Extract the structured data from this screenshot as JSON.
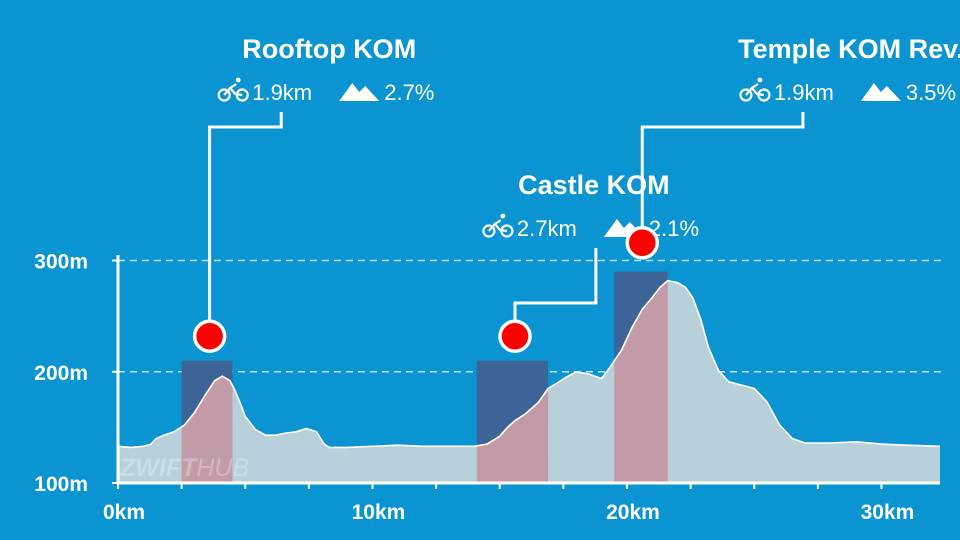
{
  "colors": {
    "background": "#0a94d1",
    "profile_fill": "#b8d0da",
    "profile_line": "#ffffff",
    "segment_bar": "#3d6496",
    "segment_climb": "#c39aa8",
    "marker": "#ff0000",
    "text": "#ffffff"
  },
  "icons": {
    "distance": "cyclist-icon",
    "gradient": "mountain-icon"
  },
  "watermark": {
    "left": "ZWIFT",
    "right": "HUB"
  },
  "chart_data": {
    "type": "area",
    "xlabel": "",
    "ylabel": "",
    "xlim": [
      0,
      32.3
    ],
    "ylim": [
      100,
      305
    ],
    "grid": true,
    "x_ticks": [
      0,
      10,
      20,
      30
    ],
    "x_tick_labels": [
      "0km",
      "10km",
      "20km",
      "30km"
    ],
    "y_ticks": [
      100,
      200,
      300
    ],
    "y_tick_labels": [
      "100m",
      "200m",
      "300m"
    ],
    "y_gridlines": [
      200,
      300
    ],
    "profile": {
      "x": [
        0,
        0.5,
        1,
        1.3,
        1.5,
        1.8,
        2.2,
        2.6,
        3.0,
        3.4,
        3.8,
        4.1,
        4.4,
        4.6,
        4.8,
        5.0,
        5.4,
        5.8,
        6.2,
        6.6,
        7.0,
        7.4,
        7.8,
        8.1,
        8.3,
        9,
        10,
        11,
        12,
        13,
        14,
        14.5,
        15.0,
        15.3,
        15.6,
        16.0,
        16.5,
        16.9,
        17.2,
        17.6,
        18.0,
        18.5,
        19.0,
        19.3,
        19.8,
        20.2,
        20.6,
        21.0,
        21.3,
        21.6,
        22.0,
        22.3,
        22.6,
        22.9,
        23.2,
        23.6,
        24.0,
        24.5,
        25.0,
        25.5,
        26.0,
        26.5,
        27.0,
        28,
        29,
        30,
        31,
        32.3
      ],
      "y": [
        133,
        132,
        133,
        135,
        140,
        143,
        146,
        152,
        163,
        178,
        192,
        196,
        192,
        183,
        172,
        160,
        148,
        143,
        143,
        145,
        146,
        149,
        146,
        135,
        132,
        132,
        133,
        134,
        133,
        133,
        133,
        135,
        142,
        150,
        156,
        162,
        172,
        185,
        189,
        195,
        200,
        198,
        194,
        203,
        220,
        240,
        256,
        267,
        276,
        282,
        280,
        276,
        266,
        247,
        222,
        201,
        191,
        188,
        185,
        173,
        152,
        140,
        136,
        136,
        137,
        135,
        134,
        133
      ]
    },
    "segments": [
      {
        "name": "Rooftop KOM",
        "distance": "1.9km",
        "gradient": "2.7%",
        "start_km": 2.5,
        "end_km": 4.5,
        "peak_elev": 210,
        "marker_km": 3.6,
        "marker_elev": 232,
        "label_center_km": 8.3,
        "label_level": 1
      },
      {
        "name": "Castle KOM",
        "distance": "2.7km",
        "gradient": "2.1%",
        "start_km": 14.1,
        "end_km": 16.9,
        "peak_elev": 210,
        "marker_km": 15.6,
        "marker_elev": 232,
        "label_center_km": 18.7,
        "label_level": 2
      },
      {
        "name": "Temple KOM Rev.",
        "distance": "1.9km",
        "gradient": "3.5%",
        "start_km": 19.5,
        "end_km": 21.6,
        "peak_elev": 290,
        "marker_km": 20.6,
        "marker_elev": 316,
        "label_center_km": 28.8,
        "label_level": 1
      }
    ]
  }
}
